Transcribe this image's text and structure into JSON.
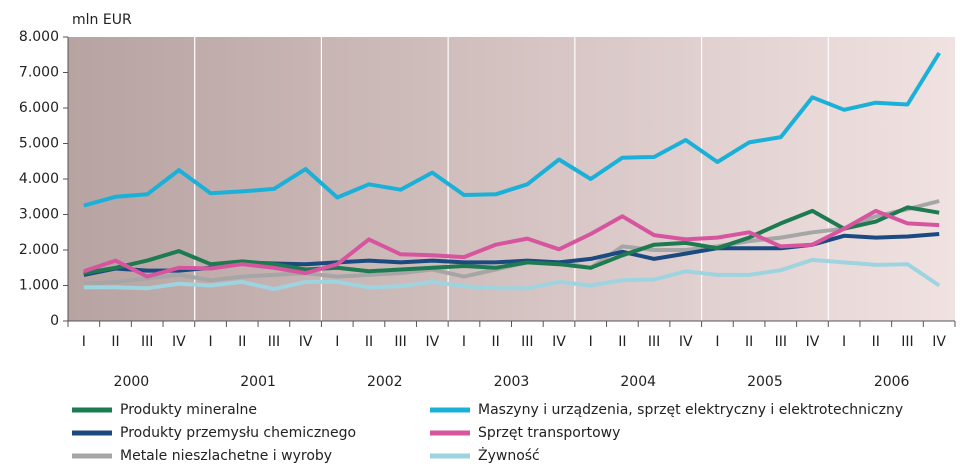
{
  "chart_data": {
    "type": "line",
    "y_label": "mln EUR",
    "categories": [
      "I",
      "II",
      "III",
      "IV",
      "I",
      "II",
      "III",
      "IV",
      "I",
      "II",
      "III",
      "IV",
      "I",
      "II",
      "III",
      "IV",
      "I",
      "II",
      "III",
      "IV",
      "I",
      "II",
      "III",
      "IV",
      "I",
      "II",
      "III",
      "IV"
    ],
    "years": [
      "2000",
      "2001",
      "2002",
      "2003",
      "2004",
      "2005",
      "2006"
    ],
    "ylim": [
      0,
      8000
    ],
    "yticks": [
      0,
      {
        "value": 1000,
        "label": "1.000"
      },
      {
        "value": 2000,
        "label": "2.000"
      },
      {
        "value": 3000,
        "label": "3.000"
      },
      {
        "value": 4000,
        "label": "4.000"
      },
      {
        "value": 5000,
        "label": "5.000"
      },
      {
        "value": 6000,
        "label": "6.000"
      },
      {
        "value": 7000,
        "label": "7.000"
      },
      {
        "value": 8000,
        "label": "8.000"
      }
    ],
    "series": [
      {
        "name": "Produkty mineralne",
        "color": "#1e7a50",
        "values": [
          1350,
          1500,
          1700,
          1970,
          1600,
          1680,
          1600,
          1450,
          1500,
          1400,
          1450,
          1500,
          1550,
          1500,
          1650,
          1600,
          1500,
          1850,
          2150,
          2200,
          2050,
          2350,
          2750,
          3100,
          2600,
          2800,
          3200,
          3050
        ]
      },
      {
        "name": "Maszyny i urządzenia, sprzęt elektryczny i elektrotechniczny",
        "color": "#1bb0d8",
        "values": [
          3250,
          3500,
          3570,
          4250,
          3600,
          3650,
          3720,
          4280,
          3480,
          3850,
          3700,
          4180,
          3550,
          3570,
          3850,
          4550,
          4000,
          4600,
          4620,
          5100,
          4480,
          5030,
          5180,
          6300,
          5950,
          6150,
          6100,
          7550
        ]
      },
      {
        "name": "Produkty przemysłu chemicznego",
        "color": "#1a4a80",
        "values": [
          1300,
          1480,
          1420,
          1420,
          1500,
          1650,
          1620,
          1600,
          1650,
          1700,
          1650,
          1700,
          1650,
          1650,
          1700,
          1650,
          1750,
          1950,
          1750,
          1900,
          2050,
          2050,
          2050,
          2150,
          2400,
          2350,
          2380,
          2450
        ]
      },
      {
        "name": "Sprzęt transportowy",
        "color": "#d6559e",
        "values": [
          1400,
          1700,
          1250,
          1500,
          1480,
          1600,
          1500,
          1350,
          1600,
          2300,
          1880,
          1850,
          1800,
          2150,
          2320,
          2020,
          2450,
          2950,
          2420,
          2300,
          2350,
          2500,
          2100,
          2150,
          2600,
          3100,
          2750,
          2700
        ]
      },
      {
        "name": "Metale nieszlachetne i wyroby",
        "color": "#a6a6a6",
        "values": [
          1050,
          1100,
          1200,
          1300,
          1150,
          1250,
          1300,
          1350,
          1250,
          1300,
          1350,
          1450,
          1250,
          1450,
          1650,
          1650,
          1500,
          2100,
          2000,
          2000,
          2100,
          2250,
          2350,
          2500,
          2600,
          2950,
          3150,
          3380
        ]
      },
      {
        "name": "Żywność",
        "color": "#9dd4e0",
        "values": [
          950,
          950,
          920,
          1050,
          1000,
          1100,
          900,
          1100,
          1100,
          950,
          980,
          1100,
          980,
          920,
          920,
          1100,
          1000,
          1150,
          1170,
          1400,
          1300,
          1300,
          1430,
          1720,
          1650,
          1580,
          1600,
          1000
        ]
      }
    ]
  }
}
